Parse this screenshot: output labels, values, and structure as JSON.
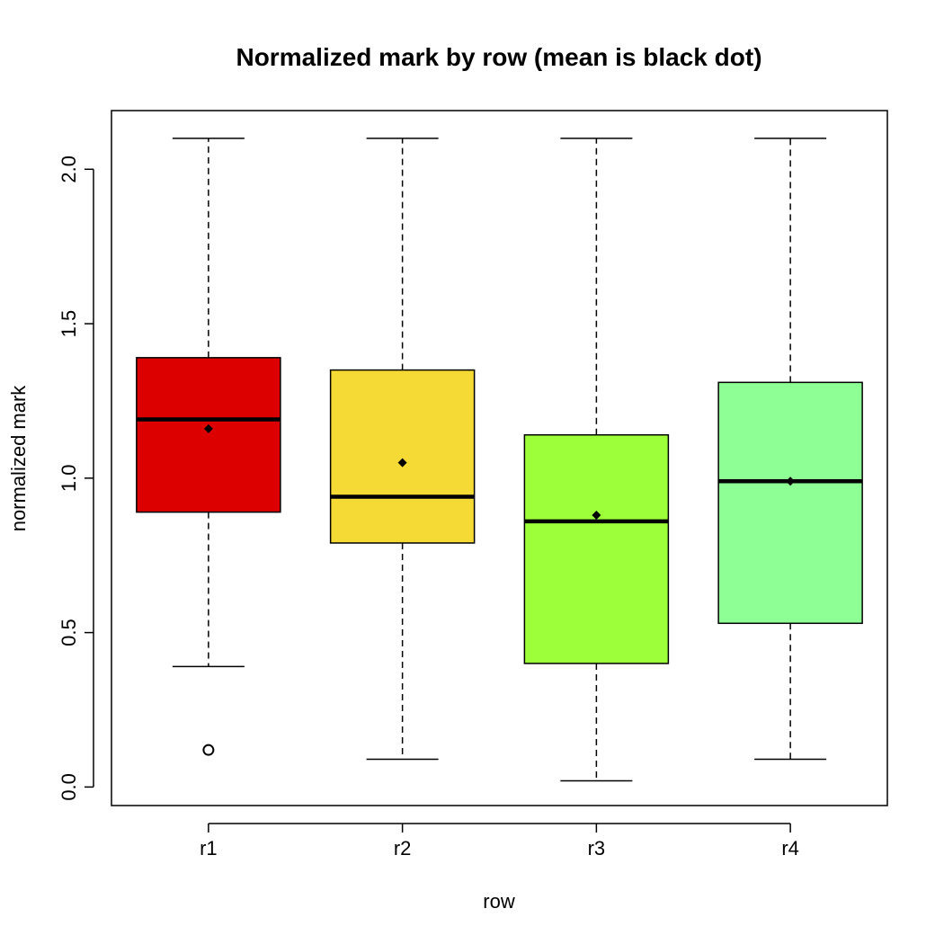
{
  "chart_data": {
    "type": "box",
    "title": "Normalized mark by row (mean is black dot)",
    "xlabel": "row",
    "ylabel": "normalized mark",
    "ylim": [
      -0.06,
      2.19
    ],
    "yticks": [
      "0.0",
      "0.5",
      "1.0",
      "1.5",
      "2.0"
    ],
    "categories": [
      "r1",
      "r2",
      "r3",
      "r4"
    ],
    "boxes": [
      {
        "name": "r1",
        "color": "#dd0000",
        "whisker_low": 0.39,
        "q1": 0.89,
        "median": 1.19,
        "q3": 1.39,
        "whisker_high": 2.1,
        "mean": 1.16,
        "outliers": [
          0.12
        ]
      },
      {
        "name": "r2",
        "color": "#f5d935",
        "whisker_low": 0.09,
        "q1": 0.79,
        "median": 0.94,
        "q3": 1.35,
        "whisker_high": 2.1,
        "mean": 1.05,
        "outliers": []
      },
      {
        "name": "r3",
        "color": "#9cff3a",
        "whisker_low": 0.02,
        "q1": 0.4,
        "median": 0.86,
        "q3": 1.14,
        "whisker_high": 2.1,
        "mean": 0.88,
        "outliers": []
      },
      {
        "name": "r4",
        "color": "#8dff94",
        "whisker_low": 0.09,
        "q1": 0.53,
        "median": 0.99,
        "q3": 1.31,
        "whisker_high": 2.1,
        "mean": 0.99,
        "outliers": []
      }
    ],
    "grid": false,
    "legend": "none"
  }
}
